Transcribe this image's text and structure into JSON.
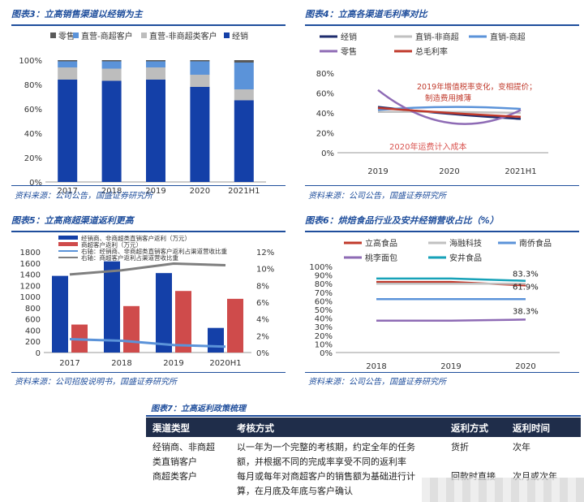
{
  "fig3": {
    "title": "图表3：立高销售渠道以经销为主",
    "source": "资料来源：公司公告，国盛证券研究所",
    "chart_data": {
      "type": "bar",
      "stacked": true,
      "categories": [
        "2017",
        "2018",
        "2019",
        "2020",
        "2021H1"
      ],
      "series": [
        {
          "name": "经销",
          "color": "#1440a8",
          "values": [
            84,
            83,
            84,
            78,
            67
          ]
        },
        {
          "name": "直营-非商超类客户",
          "color": "#bdbdbd",
          "values": [
            10,
            10,
            10,
            10,
            9
          ]
        },
        {
          "name": "直营-商超客户",
          "color": "#5b93d9",
          "values": [
            5,
            6,
            5,
            11,
            22
          ]
        },
        {
          "name": "零售",
          "color": "#595959",
          "values": [
            1,
            1,
            1,
            1,
            2
          ]
        }
      ],
      "legend_order": [
        "零售",
        "直营-商超客户",
        "直营-非商超类客户",
        "经销"
      ],
      "yticks": [
        "0%",
        "20%",
        "40%",
        "60%",
        "80%",
        "100%"
      ],
      "ylim": [
        0,
        100
      ]
    }
  },
  "fig4": {
    "title": "图表4：立高各渠道毛利率对比",
    "source": "资料来源：公司公告，国盛证券研究所",
    "annotation_red": [
      "2019年增值税率变化，变相提价；",
      "制造费用摊薄"
    ],
    "annotation_pink": "2020年运费计入成本",
    "chart_data": {
      "type": "line",
      "x": [
        "2019",
        "2020",
        "2021H1"
      ],
      "series": [
        {
          "name": "经销",
          "color": "#1f2d6e",
          "values": [
            46,
            39,
            34
          ]
        },
        {
          "name": "直销-非商超",
          "color": "#c0c0c0",
          "values": [
            41,
            41,
            40
          ]
        },
        {
          "name": "直销-商超",
          "color": "#5b93d9",
          "values": [
            43,
            46,
            44
          ]
        },
        {
          "name": "零售",
          "color": "#8e6bb5",
          "values": [
            63,
            30,
            43
          ]
        },
        {
          "name": "总毛利率",
          "color": "#c0392b",
          "values": [
            45,
            40,
            36
          ]
        }
      ],
      "yticks": [
        "0%",
        "20%",
        "40%",
        "60%",
        "80%"
      ],
      "ylim": [
        0,
        80
      ]
    }
  },
  "fig5": {
    "title": "图表5：立高商超渠道返利更高",
    "source": "资料来源：公司招股说明书，国盛证券研究所",
    "legend": [
      "经销商、非商超类直销客户返利（万元）",
      "商超客户返利（万元）",
      "右轴：经销商、非商超类直销客户返利占渠道营收比重",
      "右轴：商超客户返利占渠道营收比重"
    ],
    "chart_data": {
      "type": "bar",
      "categories": [
        "2017",
        "2018",
        "2019",
        "2020H1"
      ],
      "series": [
        {
          "name": "经销商、非商超类直销客户返利（万元）",
          "color": "#1440a8",
          "values": [
            1370,
            1630,
            1420,
            440
          ]
        },
        {
          "name": "商超客户返利（万元）",
          "color": "#cf4b4b",
          "values": [
            500,
            830,
            1100,
            960
          ]
        }
      ],
      "lines": [
        {
          "name": "右轴：经销商、非商超类直销客户返利占渠道营收比重",
          "color": "#5b93d9",
          "values": [
            1.6,
            1.4,
            0.9,
            0.7
          ]
        },
        {
          "name": "右轴：商超客户返利占渠道营收比重",
          "color": "#7f7f7f",
          "values": [
            9.3,
            9.8,
            10.6,
            10.4
          ]
        }
      ],
      "yticks_left": [
        "0",
        "200",
        "400",
        "600",
        "800",
        "1000",
        "1200",
        "1400",
        "1600",
        "1800"
      ],
      "yticks_right": [
        "0%",
        "2%",
        "4%",
        "6%",
        "8%",
        "10%",
        "12%"
      ],
      "ylim": [
        0,
        1800
      ],
      "ylim_right": [
        0,
        12
      ]
    }
  },
  "fig6": {
    "title": "图表6：烘焙食品行业及安井经销营收占比（%）",
    "source": "资料来源：公司公告，国盛证券研究所",
    "labels": [
      "83.3%",
      "61.9%",
      "38.3%"
    ],
    "chart_data": {
      "type": "line",
      "x": [
        "2018",
        "2019",
        "2020"
      ],
      "series": [
        {
          "name": "立高食品",
          "color": "#c0392b",
          "values": [
            82,
            82,
            78
          ]
        },
        {
          "name": "海融科技",
          "color": "#c0c0c0",
          "values": [
            80,
            80,
            80
          ]
        },
        {
          "name": "南侨食品",
          "color": "#5b93d9",
          "values": [
            62,
            62,
            62
          ]
        },
        {
          "name": "桃李面包",
          "color": "#8e6bb5",
          "values": [
            37,
            37,
            38.3
          ]
        },
        {
          "name": "安井食品",
          "color": "#17a2b8",
          "values": [
            86,
            86,
            83.3
          ]
        }
      ],
      "yticks": [
        "0%",
        "10%",
        "20%",
        "30%",
        "40%",
        "50%",
        "60%",
        "70%",
        "80%",
        "90%",
        "100%"
      ],
      "ylim": [
        0,
        100
      ]
    }
  },
  "table": {
    "title": "图表7：立高返利政策梳理",
    "headers": [
      "渠道类型",
      "考核方式",
      "返利方式",
      "返利时间"
    ],
    "rows": [
      {
        "type": [
          "经销商、非商超",
          "类直销客户"
        ],
        "method": [
          "以一年为一个完整的考核期，约定全年的任务",
          "额，并根据不同的完成率享受不同的返利率"
        ],
        "way": "货折",
        "time": "次年"
      },
      {
        "type": [
          "商超类客户"
        ],
        "method": [
          "每月或每年对商超客户的销售额为基础进行计",
          "算，在月底及年底与客户确认"
        ],
        "way": "回款时直接",
        "time": "次月或次年"
      }
    ]
  }
}
